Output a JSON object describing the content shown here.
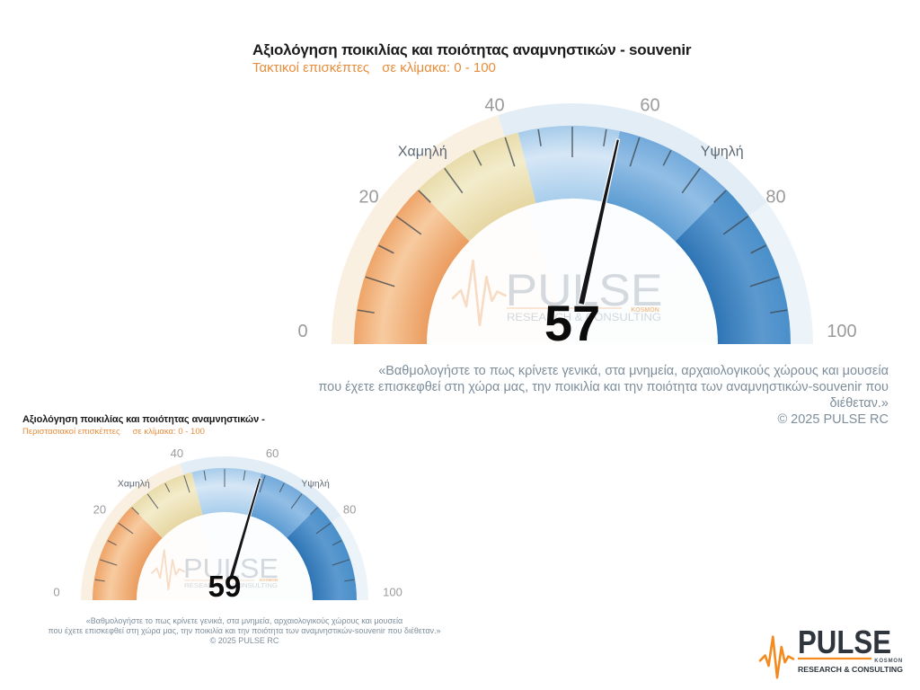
{
  "watermark": {
    "brand": "PULSE",
    "tagline": "RESEARCH & CONSULTING",
    "badge": "KOSMON"
  },
  "logo": {
    "brand": "PULSE",
    "tagline": "RESEARCH & CONSULTING",
    "badge": "KOSMON"
  },
  "colors": {
    "accent": "#E78E3C",
    "title": "#1A1A1A",
    "note": "#7E8E9B",
    "tick_label": "#9B9B9B",
    "zone_label": "#5D6873",
    "value": "#0B0B0B",
    "needle": "#16161A",
    "tick": "#3E464E",
    "watermark_text": "#B3BDC6",
    "watermark_accent": "#F2B98C",
    "logo_dark": "#2F353C",
    "logo_orange": "#F28A1E",
    "segment_gradients": {
      "orange": [
        "#EB9D60",
        "#F7CBA0",
        "#EEA468"
      ],
      "tan": [
        "#E6D7A3",
        "#F3ECCB",
        "#E9DCAB"
      ],
      "lightblue": [
        "#A9CEEC",
        "#D6E7F6",
        "#A6CBEA"
      ],
      "midblue": [
        "#5E9DD3",
        "#92BEE5",
        "#73AADB"
      ],
      "darkblue": [
        "#2F75B5",
        "#5C99CF",
        "#4A8FCA"
      ]
    }
  },
  "chart_data": [
    {
      "type": "gauge",
      "title": "Αξιολόγηση ποικιλίας και ποιότητας αναμνηστικών - souvenir",
      "subtitle": "Τακτικοί επισκέπτες",
      "subtitle_scale": "σε κλίμακα:  0 - 100",
      "min": 0,
      "max": 100,
      "value": 57,
      "tick_labels": [
        0,
        20,
        40,
        60,
        80,
        100
      ],
      "minor_tick_step": 5,
      "major_tick_step": 10,
      "zone_labels": [
        {
          "text": "Χαμηλή",
          "at": 29
        },
        {
          "text": "Υψηλή",
          "at": 71
        }
      ],
      "segments": [
        {
          "from": 0,
          "to": 25,
          "color": "orange"
        },
        {
          "from": 25,
          "to": 42,
          "color": "tan"
        },
        {
          "from": 42,
          "to": 57,
          "color": "lightblue"
        },
        {
          "from": 57,
          "to": 75,
          "color": "midblue"
        },
        {
          "from": 75,
          "to": 100,
          "color": "darkblue"
        }
      ],
      "background_bands": [
        {
          "from": 0,
          "to": 40,
          "color": "#FAF0E2"
        },
        {
          "from": 40,
          "to": 80,
          "color": "#E2EDF6"
        },
        {
          "from": 80,
          "to": 100,
          "color": "#ECF3F9"
        }
      ],
      "footnote_lines": [
        "«Βαθμολογήστε το πως κρίνετε γενικά, στα μνημεία, αρχαιολογικούς χώρους και μουσεία",
        "που έχετε επισκεφθεί στη χώρα μας, την ποικιλία και την ποιότητα των αναμνηστικών-souvenir που διέθεταν.»"
      ],
      "copyright": "© 2025 PULSE RC"
    },
    {
      "type": "gauge",
      "title": "Αξιολόγηση ποικιλίας και ποιότητας αναμνηστικών -",
      "subtitle": "Περιστασιακοί επισκέπτες",
      "subtitle_scale": "σε κλίμακα:  0 - 100",
      "min": 0,
      "max": 100,
      "value": 59,
      "tick_labels": [
        0,
        20,
        40,
        60,
        80,
        100
      ],
      "minor_tick_step": 5,
      "major_tick_step": 10,
      "zone_labels": [
        {
          "text": "Χαμηλή",
          "at": 29
        },
        {
          "text": "Υψηλή",
          "at": 71
        }
      ],
      "segments": [
        {
          "from": 0,
          "to": 25,
          "color": "orange"
        },
        {
          "from": 25,
          "to": 42,
          "color": "tan"
        },
        {
          "from": 42,
          "to": 59,
          "color": "lightblue"
        },
        {
          "from": 59,
          "to": 75,
          "color": "midblue"
        },
        {
          "from": 75,
          "to": 100,
          "color": "darkblue"
        }
      ],
      "background_bands": [
        {
          "from": 0,
          "to": 40,
          "color": "#FAF0E2"
        },
        {
          "from": 40,
          "to": 80,
          "color": "#E2EDF6"
        },
        {
          "from": 80,
          "to": 100,
          "color": "#ECF3F9"
        }
      ],
      "footnote_lines": [
        "«Βαθμολογήστε το πως κρίνετε γενικά, στα μνημεία, αρχαιολογικούς χώρους και μουσεία",
        "που έχετε επισκεφθεί στη χώρα μας, την ποικιλία και την ποιότητα των αναμνηστικών-souvenir που διέθεταν.»"
      ],
      "copyright": "© 2025 PULSE RC"
    }
  ]
}
